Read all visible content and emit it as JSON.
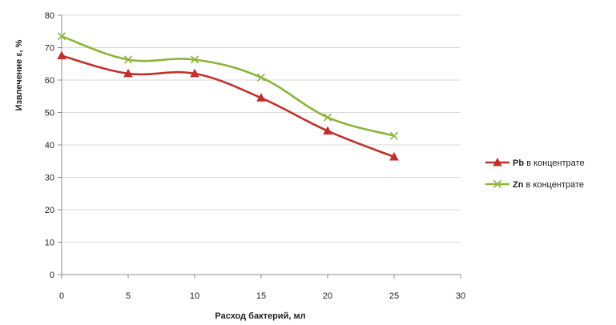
{
  "chart_data": {
    "type": "line",
    "title": "",
    "xlabel": "Расход бактерий, мл",
    "ylabel": "Извлечение ε, %",
    "xlim": [
      0,
      30
    ],
    "ylim": [
      0,
      80
    ],
    "x_ticks": [
      0,
      5,
      10,
      15,
      20,
      25,
      30
    ],
    "y_ticks": [
      0,
      10,
      20,
      30,
      40,
      50,
      60,
      70,
      80
    ],
    "grid": "horizontal",
    "legend_position": "right",
    "series": [
      {
        "name_prefix": "Pb",
        "name_suffix": " в концентрате",
        "marker": "triangle",
        "color": "#c0312d",
        "x": [
          0,
          5,
          10,
          15,
          20,
          25
        ],
        "y": [
          67.5,
          62,
          62,
          54.5,
          44.3,
          36.3
        ]
      },
      {
        "name_prefix": "Zn",
        "name_suffix": " в концентрате",
        "marker": "x",
        "color": "#8db43a",
        "x": [
          0,
          5,
          10,
          15,
          20,
          25
        ],
        "y": [
          73.5,
          66.3,
          66.3,
          60.8,
          48.5,
          42.8
        ]
      }
    ]
  }
}
